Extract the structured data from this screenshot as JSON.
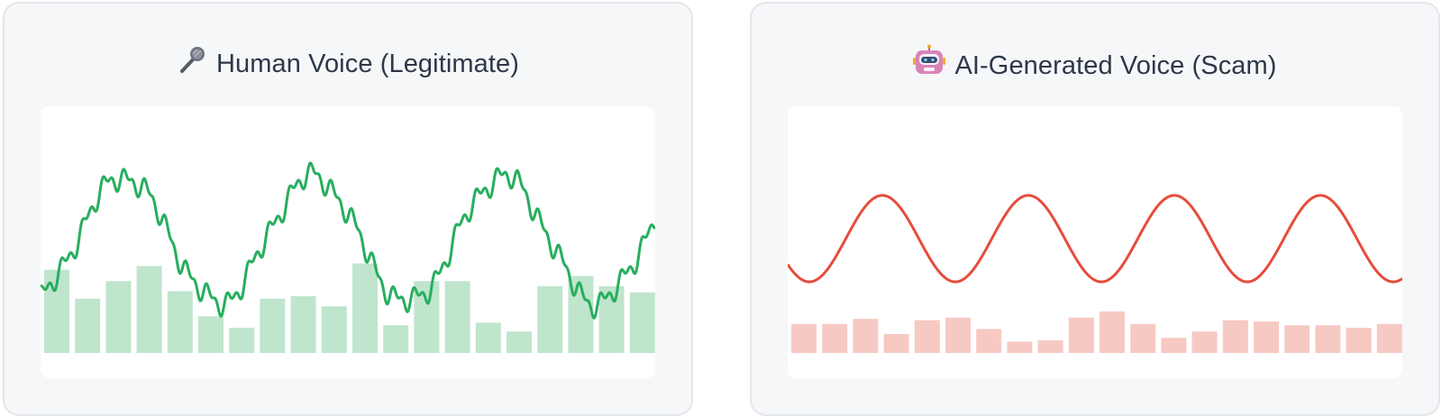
{
  "panels": [
    {
      "id": "human",
      "title": "Human Voice (Legitimate)",
      "icon": "microphone-icon",
      "colors": {
        "line": "#27ae5f",
        "bars": "#bfe5cd"
      },
      "bar_levels": [
        0.66,
        0.43,
        0.57,
        0.69,
        0.49,
        0.29,
        0.2,
        0.43,
        0.45,
        0.37,
        0.71,
        0.22,
        0.57,
        0.57,
        0.24,
        0.17,
        0.53,
        0.61,
        0.53,
        0.48
      ]
    },
    {
      "id": "ai",
      "title": "AI-Generated Voice (Scam)",
      "icon": "robot-icon",
      "colors": {
        "line": "#e74c3c",
        "bars": "#f7c9c3"
      },
      "bar_levels": [
        0.23,
        0.23,
        0.27,
        0.15,
        0.26,
        0.28,
        0.19,
        0.09,
        0.1,
        0.28,
        0.33,
        0.23,
        0.12,
        0.17,
        0.26,
        0.25,
        0.22,
        0.22,
        0.2,
        0.23
      ]
    }
  ]
}
